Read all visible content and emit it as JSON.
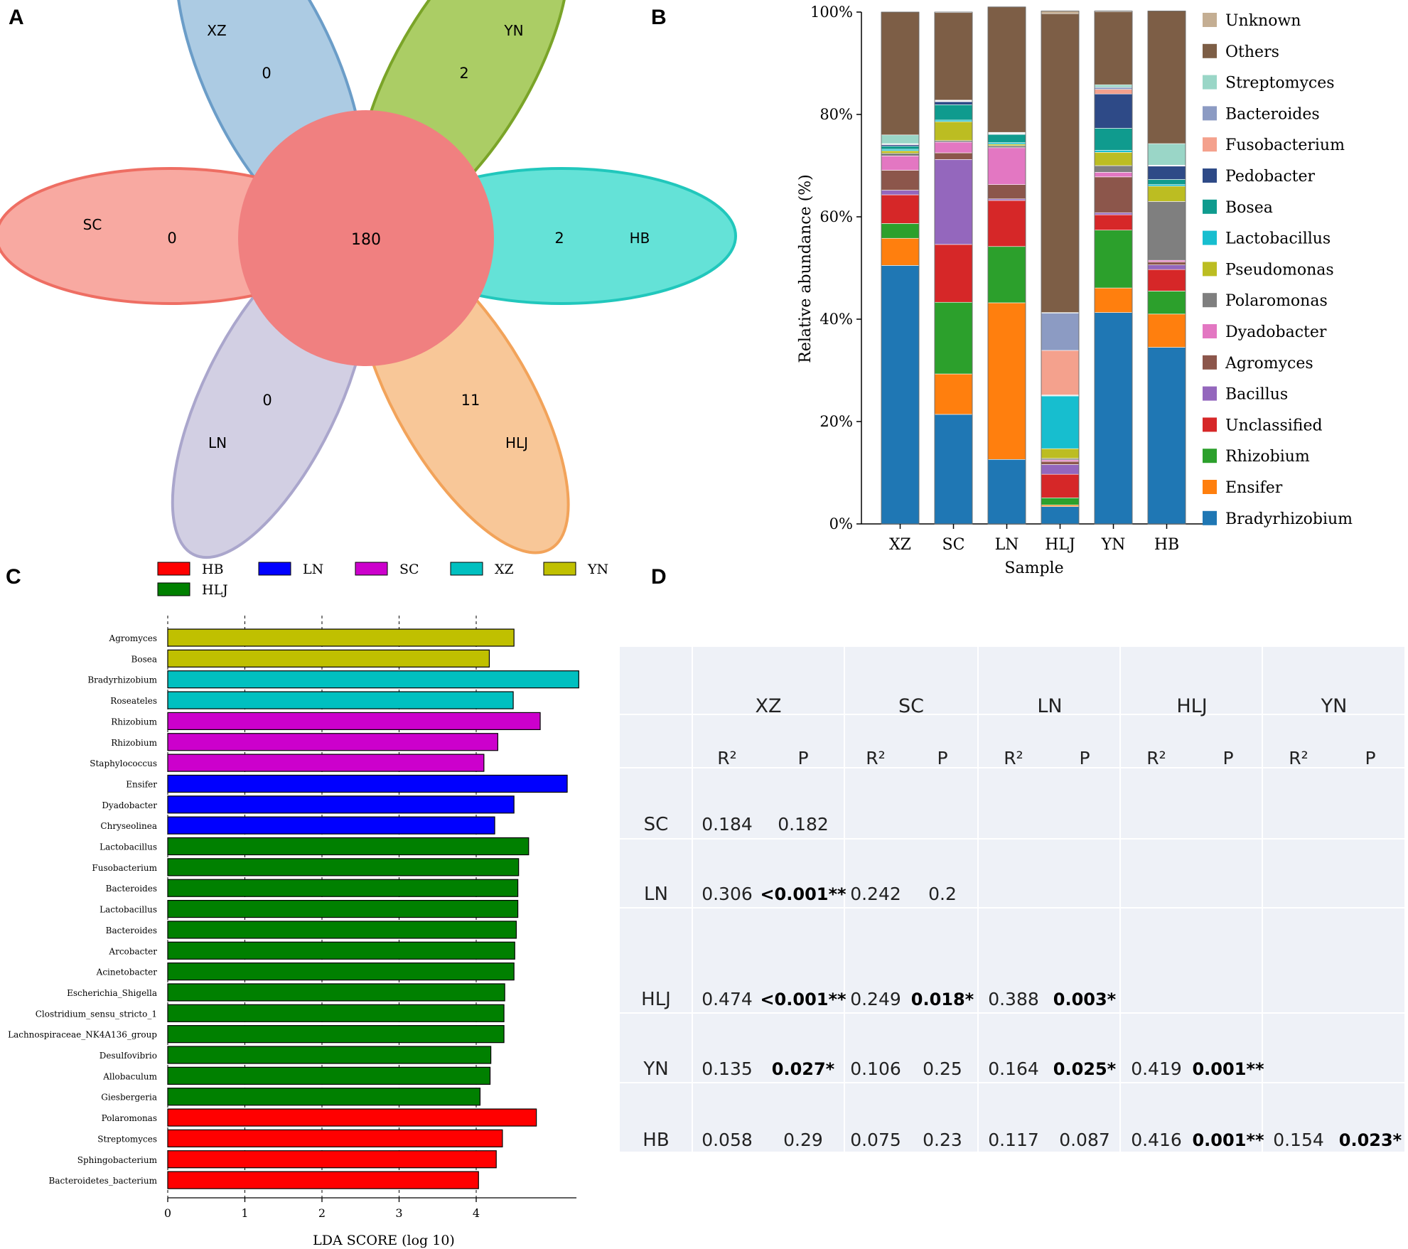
{
  "panels": {
    "a": "A",
    "b": "B",
    "c": "C",
    "d": "D"
  },
  "venn": {
    "center_value": "180",
    "center_color": "#F08080",
    "petals": [
      {
        "name": "XZ",
        "value": "0",
        "fill": "#A8C8E2",
        "stroke": "#6B9DC8"
      },
      {
        "name": "YN",
        "value": "2",
        "fill": "#A7CA5D",
        "stroke": "#7AA428"
      },
      {
        "name": "HB",
        "value": "2",
        "fill": "#5CE0D5",
        "stroke": "#21C7BC"
      },
      {
        "name": "HLJ",
        "value": "11",
        "fill": "#F8C492",
        "stroke": "#F2A35A"
      },
      {
        "name": "LN",
        "value": "0",
        "fill": "#D0CCE2",
        "stroke": "#AAA6CC"
      },
      {
        "name": "SC",
        "value": "0",
        "fill": "#F8A49C",
        "stroke": "#EE6E63"
      }
    ]
  },
  "chart_data": [
    {
      "type": "bar",
      "subtype": "stacked-percent",
      "panel": "B",
      "title": "",
      "xlabel": "Sample",
      "ylabel": "Relative abundance (%)",
      "ylim": [
        0,
        100
      ],
      "yticks": [
        "0%",
        "20%",
        "40%",
        "60%",
        "80%",
        "100%"
      ],
      "categories": [
        "XZ",
        "SC",
        "LN",
        "HLJ",
        "YN",
        "HB"
      ],
      "series": [
        {
          "name": "Bradyrhizobium",
          "color": "#1F77B4",
          "values": [
            50.5,
            21.4,
            12.6,
            3.4,
            41.3,
            34.5
          ]
        },
        {
          "name": "Ensifer",
          "color": "#FF7F0E",
          "values": [
            5.3,
            7.9,
            30.6,
            0.3,
            4.8,
            6.5
          ]
        },
        {
          "name": "Rhizobium",
          "color": "#2CA02C",
          "values": [
            2.9,
            14.0,
            11.0,
            1.4,
            11.3,
            4.5
          ]
        },
        {
          "name": "Unclassified",
          "color": "#D62728",
          "values": [
            5.6,
            11.3,
            9.0,
            4.6,
            3.0,
            4.2
          ]
        },
        {
          "name": "Bacillus",
          "color": "#9467BD",
          "values": [
            0.9,
            16.6,
            0.3,
            1.9,
            0.4,
            0.9
          ]
        },
        {
          "name": "Agromyces",
          "color": "#8C564B",
          "values": [
            3.9,
            1.3,
            2.8,
            0.6,
            7.0,
            0.6
          ]
        },
        {
          "name": "Dyadobacter",
          "color": "#E377C2",
          "values": [
            2.8,
            2.1,
            7.2,
            0.3,
            0.9,
            0.3
          ]
        },
        {
          "name": "Polaromonas",
          "color": "#7F7F7F",
          "values": [
            0.5,
            0.3,
            0.4,
            0.3,
            1.3,
            11.5
          ]
        },
        {
          "name": "Pseudomonas",
          "color": "#BCBD22",
          "values": [
            0.5,
            3.7,
            0.3,
            1.9,
            2.6,
            3.0
          ]
        },
        {
          "name": "Lactobacillus",
          "color": "#17BECF",
          "values": [
            0.3,
            0.3,
            0.3,
            10.3,
            0.4,
            0.3
          ]
        },
        {
          "name": "Bosea",
          "color": "#0F9B8E",
          "values": [
            0.6,
            3.0,
            1.6,
            0.1,
            4.3,
            1.0
          ]
        },
        {
          "name": "Pedobacter",
          "color": "#2E4A87",
          "values": [
            0.3,
            0.6,
            0.1,
            0.1,
            6.7,
            2.6
          ]
        },
        {
          "name": "Fusobacterium",
          "color": "#F4A18D",
          "values": [
            0.1,
            0.1,
            0.1,
            8.7,
            0.9,
            0.1
          ]
        },
        {
          "name": "Bacteroides",
          "color": "#8C9BC3",
          "values": [
            0.1,
            0.1,
            0.1,
            7.3,
            0.4,
            0.1
          ]
        },
        {
          "name": "Streptomyces",
          "color": "#9AD6C7",
          "values": [
            1.7,
            0.1,
            0.1,
            0.1,
            0.5,
            4.2
          ]
        },
        {
          "name": "Others",
          "color": "#7D5E46",
          "values": [
            24.0,
            17.1,
            24.5,
            58.4,
            14.3,
            25.9
          ]
        },
        {
          "name": "Unknown",
          "color": "#C4AE93",
          "values": [
            0.0,
            0.1,
            0.0,
            0.5,
            0.1,
            0.0
          ]
        }
      ]
    },
    {
      "type": "bar",
      "subtype": "horizontal",
      "panel": "C",
      "xlabel": "LDA SCORE (log 10)",
      "xlim": [
        0,
        5.3
      ],
      "xticks": [
        "0",
        "1",
        "2",
        "3",
        "4"
      ],
      "groups": [
        {
          "name": "HB",
          "color": "#FF0000"
        },
        {
          "name": "LN",
          "color": "#0000FF"
        },
        {
          "name": "SC",
          "color": "#CC00CC"
        },
        {
          "name": "XZ",
          "color": "#00C0C0"
        },
        {
          "name": "YN",
          "color": "#C0C000"
        },
        {
          "name": "HLJ",
          "color": "#008000"
        }
      ],
      "bars": [
        {
          "label": "Agromyces",
          "group": "YN",
          "value": 4.49
        },
        {
          "label": "Bosea",
          "group": "YN",
          "value": 4.17
        },
        {
          "label": "Bradyrhizobium",
          "group": "XZ",
          "value": 5.33
        },
        {
          "label": "Roseateles",
          "group": "XZ",
          "value": 4.48
        },
        {
          "label": "Rhizobium",
          "group": "SC",
          "value": 4.83
        },
        {
          "label": "Rhizobium",
          "group": "SC",
          "value": 4.28
        },
        {
          "label": "Staphylococcus",
          "group": "SC",
          "value": 4.1
        },
        {
          "label": "Ensifer",
          "group": "LN",
          "value": 5.18
        },
        {
          "label": "Dyadobacter",
          "group": "LN",
          "value": 4.49
        },
        {
          "label": "Chryseolinea",
          "group": "LN",
          "value": 4.24
        },
        {
          "label": "Lactobacillus",
          "group": "HLJ",
          "value": 4.68
        },
        {
          "label": "Fusobacterium",
          "group": "HLJ",
          "value": 4.55
        },
        {
          "label": "Bacteroides",
          "group": "HLJ",
          "value": 4.54
        },
        {
          "label": "Lactobacillus",
          "group": "HLJ",
          "value": 4.54
        },
        {
          "label": "Bacteroides",
          "group": "HLJ",
          "value": 4.52
        },
        {
          "label": "Arcobacter",
          "group": "HLJ",
          "value": 4.5
        },
        {
          "label": "Acinetobacter",
          "group": "HLJ",
          "value": 4.49
        },
        {
          "label": "Escherichia_Shigella",
          "group": "HLJ",
          "value": 4.37
        },
        {
          "label": "Clostridium_sensu_stricto_1",
          "group": "HLJ",
          "value": 4.36
        },
        {
          "label": "Lachnospiraceae_NK4A136_group",
          "group": "HLJ",
          "value": 4.36
        },
        {
          "label": "Desulfovibrio",
          "group": "HLJ",
          "value": 4.19
        },
        {
          "label": "Allobaculum",
          "group": "HLJ",
          "value": 4.18
        },
        {
          "label": "Giesbergeria",
          "group": "HLJ",
          "value": 4.05
        },
        {
          "label": "Polaromonas",
          "group": "HB",
          "value": 4.78
        },
        {
          "label": "Streptomyces",
          "group": "HB",
          "value": 4.34
        },
        {
          "label": "Sphingobacterium",
          "group": "HB",
          "value": 4.26
        },
        {
          "label": "Bacteroidetes_bacterium",
          "group": "HB",
          "value": 4.03
        }
      ]
    },
    {
      "type": "table",
      "panel": "D",
      "columns": [
        "XZ",
        "SC",
        "LN",
        "HLJ",
        "YN"
      ],
      "subheaders": [
        "R²",
        "P"
      ],
      "rows": [
        {
          "label": "SC",
          "cells": [
            [
              "0.184",
              "0.182"
            ]
          ]
        },
        {
          "label": "LN",
          "cells": [
            [
              "0.306",
              "<0.001**"
            ],
            [
              "0.242",
              "0.2"
            ]
          ]
        },
        {
          "label": "HLJ",
          "cells": [
            [
              "0.474",
              "<0.001**"
            ],
            [
              "0.249",
              "0.018*"
            ],
            [
              "0.388",
              "0.003*"
            ]
          ]
        },
        {
          "label": "YN",
          "cells": [
            [
              "0.135",
              "0.027*"
            ],
            [
              "0.106",
              "0.25"
            ],
            [
              "0.164",
              "0.025*"
            ],
            [
              "0.419",
              "0.001**"
            ]
          ]
        },
        {
          "label": "HB",
          "cells": [
            [
              "0.058",
              "0.29"
            ],
            [
              "0.075",
              "0.23"
            ],
            [
              "0.117",
              "0.087"
            ],
            [
              "0.416",
              "0.001**"
            ],
            [
              "0.154",
              "0.023*"
            ]
          ]
        }
      ]
    }
  ]
}
